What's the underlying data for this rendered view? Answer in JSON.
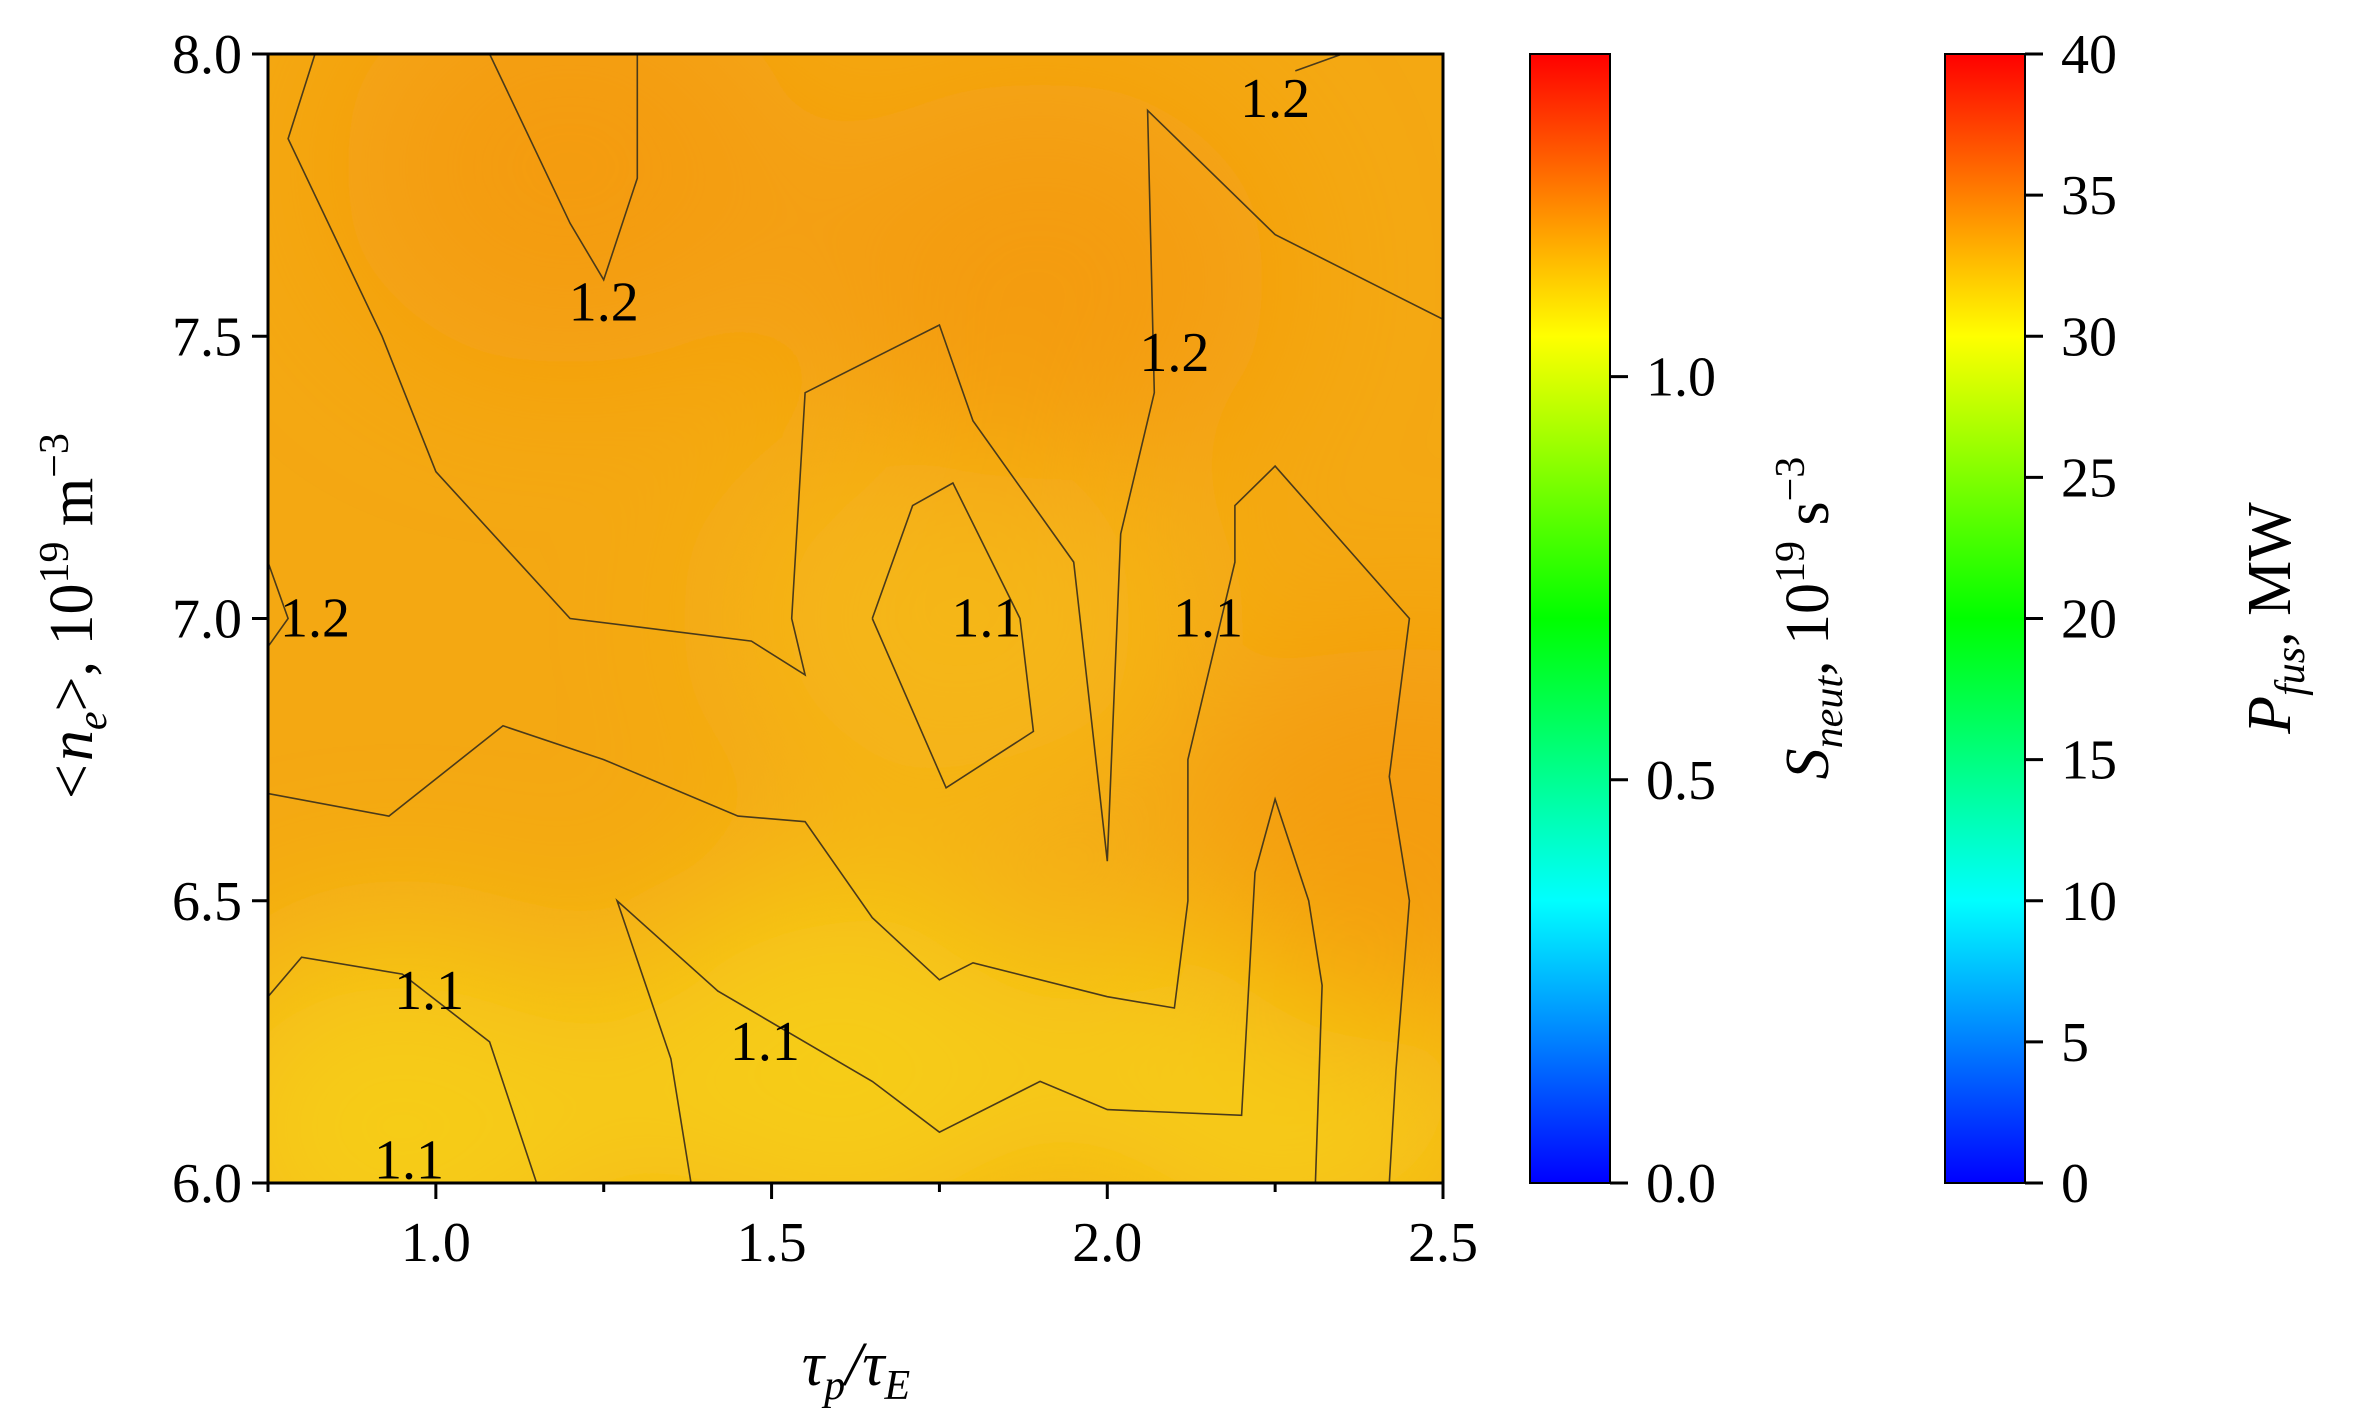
{
  "chart_data": {
    "type": "heatmap",
    "title": "",
    "xlabel": {
      "main": "τ",
      "sub1": "p",
      "slash": "/τ",
      "sub2": "E"
    },
    "ylabel": {
      "pre": "<n",
      "sub": "e",
      "post": ">, 10",
      "sup1": "19",
      "unit": " m",
      "sup2": "−3"
    },
    "xlim": [
      0.75,
      2.5
    ],
    "ylim": [
      6.0,
      8.0
    ],
    "xticks": [
      1.0,
      1.5,
      2.0,
      2.5
    ],
    "yticks": [
      6.0,
      6.5,
      7.0,
      7.5,
      8.0
    ],
    "xtick_labels": [
      "1.0",
      "1.5",
      "2.0",
      "2.5"
    ],
    "ytick_labels": [
      "6.0",
      "6.5",
      "7.0",
      "7.5",
      "8.0"
    ],
    "grid": false,
    "colormap": [
      "#0000ff",
      "#00ffff",
      "#00ff00",
      "#ffff00",
      "#ff0000"
    ],
    "field_color_low": "#f7d21a",
    "field_color_high": "#f49a0e",
    "field_blobs": [
      {
        "x": 0.95,
        "y": 6.1,
        "level": "low"
      },
      {
        "x": 2.27,
        "y": 6.2,
        "level": "low"
      },
      {
        "x": 1.6,
        "y": 6.2,
        "level": "low"
      },
      {
        "x": 1.78,
        "y": 7.0,
        "level": "mid"
      },
      {
        "x": 1.9,
        "y": 7.6,
        "level": "high"
      },
      {
        "x": 1.2,
        "y": 7.8,
        "level": "high"
      },
      {
        "x": 2.45,
        "y": 6.6,
        "level": "high"
      }
    ],
    "contour_lines": [
      {
        "level": 1.1,
        "points": [
          [
            0.75,
            6.33
          ],
          [
            0.8,
            6.4
          ],
          [
            0.95,
            6.37
          ],
          [
            1.08,
            6.25
          ],
          [
            1.15,
            6.0
          ]
        ]
      },
      {
        "level": 1.1,
        "points": [
          [
            0.75,
            6.69
          ],
          [
            0.93,
            6.65
          ],
          [
            1.1,
            6.81
          ],
          [
            1.25,
            6.75
          ],
          [
            1.45,
            6.65
          ],
          [
            1.55,
            6.64
          ],
          [
            1.65,
            6.47
          ],
          [
            1.75,
            6.36
          ],
          [
            1.8,
            6.39
          ],
          [
            2.0,
            6.33
          ],
          [
            2.1,
            6.31
          ],
          [
            2.12,
            6.5
          ],
          [
            2.12,
            6.75
          ],
          [
            2.17,
            7.0
          ],
          [
            2.19,
            7.1
          ],
          [
            2.19,
            7.2
          ],
          [
            2.25,
            7.27
          ],
          [
            2.45,
            7.0
          ],
          [
            2.42,
            6.72
          ],
          [
            2.45,
            6.5
          ],
          [
            2.43,
            6.2
          ],
          [
            2.42,
            6.0
          ]
        ]
      },
      {
        "level": 1.1,
        "points": [
          [
            1.38,
            6.0
          ],
          [
            1.35,
            6.22
          ],
          [
            1.27,
            6.5
          ],
          [
            1.42,
            6.34
          ],
          [
            1.65,
            6.18
          ],
          [
            1.75,
            6.09
          ],
          [
            1.9,
            6.18
          ],
          [
            2.0,
            6.13
          ],
          [
            2.2,
            6.12
          ],
          [
            2.22,
            6.55
          ],
          [
            2.25,
            6.68
          ],
          [
            2.3,
            6.5
          ],
          [
            2.32,
            6.35
          ],
          [
            2.31,
            6.0
          ]
        ]
      },
      {
        "level": 1.1,
        "points": [
          [
            1.65,
            7.0
          ],
          [
            1.71,
            7.2
          ],
          [
            1.77,
            7.24
          ],
          [
            1.87,
            7.0
          ],
          [
            1.89,
            6.8
          ],
          [
            1.76,
            6.7
          ],
          [
            1.65,
            7.0
          ]
        ]
      },
      {
        "level": 1.2,
        "points": [
          [
            0.75,
            7.1
          ],
          [
            0.78,
            7.0
          ],
          [
            0.75,
            6.95
          ]
        ]
      },
      {
        "level": 1.2,
        "points": [
          [
            0.82,
            8.0
          ],
          [
            0.78,
            7.85
          ],
          [
            0.92,
            7.5
          ],
          [
            1.0,
            7.26
          ],
          [
            1.2,
            7.0
          ],
          [
            1.47,
            6.96
          ],
          [
            1.55,
            6.9
          ],
          [
            1.53,
            7.0
          ],
          [
            1.55,
            7.4
          ],
          [
            1.75,
            7.52
          ],
          [
            1.8,
            7.35
          ],
          [
            1.95,
            7.1
          ],
          [
            2.0,
            6.57
          ],
          [
            2.02,
            7.15
          ],
          [
            2.07,
            7.4
          ],
          [
            2.06,
            7.9
          ],
          [
            2.25,
            7.68
          ],
          [
            2.5,
            7.53
          ]
        ]
      },
      {
        "level": 1.2,
        "points": [
          [
            1.08,
            8.0
          ],
          [
            1.2,
            7.7
          ],
          [
            1.25,
            7.6
          ],
          [
            1.3,
            7.78
          ],
          [
            1.3,
            8.0
          ]
        ]
      },
      {
        "level": 1.2,
        "points": [
          [
            2.28,
            7.97
          ],
          [
            2.35,
            8.0
          ]
        ]
      }
    ],
    "contour_labels": [
      {
        "text": "1.2",
        "x": 1.25,
        "y": 7.56
      },
      {
        "text": "1.2",
        "x": 2.1,
        "y": 7.47
      },
      {
        "text": "1.2",
        "x": 2.25,
        "y": 7.92
      },
      {
        "text": "1.2",
        "x": 0.82,
        "y": 7.0
      },
      {
        "text": "1.1",
        "x": 1.82,
        "y": 7.0
      },
      {
        "text": "1.1",
        "x": 2.15,
        "y": 7.0
      },
      {
        "text": "1.1",
        "x": 0.99,
        "y": 6.34
      },
      {
        "text": "1.1",
        "x": 1.49,
        "y": 6.25
      },
      {
        "text": "1.1",
        "x": 0.96,
        "y": 6.04
      }
    ],
    "colorbars": [
      {
        "label": {
          "main": "S",
          "sub": "neut",
          "unit": ", 10",
          "sup1": "19",
          "unit2": " s",
          "sup2": "−3"
        },
        "range": [
          0.0,
          1.4
        ],
        "ticks": [
          0.0,
          0.5,
          1.0
        ],
        "tick_labels": [
          "0.0",
          "0.5",
          "1.0"
        ]
      },
      {
        "label": {
          "main": "P",
          "sub": "fus",
          "unit": ", MW"
        },
        "range": [
          0,
          40
        ],
        "ticks": [
          0,
          5,
          10,
          15,
          20,
          25,
          30,
          35,
          40
        ],
        "tick_labels": [
          "0",
          "5",
          "10",
          "15",
          "20",
          "25",
          "30",
          "35",
          "40"
        ]
      }
    ]
  }
}
